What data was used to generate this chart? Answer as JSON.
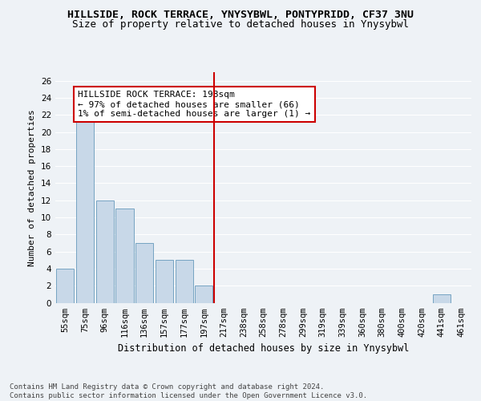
{
  "title": "HILLSIDE, ROCK TERRACE, YNYSYBWL, PONTYPRIDD, CF37 3NU",
  "subtitle": "Size of property relative to detached houses in Ynysybwl",
  "xlabel": "Distribution of detached houses by size in Ynysybwl",
  "ylabel": "Number of detached properties",
  "categories": [
    "55sqm",
    "75sqm",
    "96sqm",
    "116sqm",
    "136sqm",
    "157sqm",
    "177sqm",
    "197sqm",
    "217sqm",
    "238sqm",
    "258sqm",
    "278sqm",
    "299sqm",
    "319sqm",
    "339sqm",
    "360sqm",
    "380sqm",
    "400sqm",
    "420sqm",
    "441sqm",
    "461sqm"
  ],
  "values": [
    4,
    22,
    12,
    11,
    7,
    5,
    5,
    2,
    0,
    0,
    0,
    0,
    0,
    0,
    0,
    0,
    0,
    0,
    0,
    1,
    0
  ],
  "bar_color": "#c8d8e8",
  "bar_edge_color": "#6699bb",
  "vline_idx": 7,
  "vline_color": "#cc0000",
  "annotation_text": "HILLSIDE ROCK TERRACE: 198sqm\n← 97% of detached houses are smaller (66)\n1% of semi-detached houses are larger (1) →",
  "annotation_box_color": "#ffffff",
  "annotation_box_edge": "#cc0000",
  "ylim": [
    0,
    27
  ],
  "yticks": [
    0,
    2,
    4,
    6,
    8,
    10,
    12,
    14,
    16,
    18,
    20,
    22,
    24,
    26
  ],
  "footer": "Contains HM Land Registry data © Crown copyright and database right 2024.\nContains public sector information licensed under the Open Government Licence v3.0.",
  "title_fontsize": 9.5,
  "subtitle_fontsize": 9,
  "xlabel_fontsize": 8.5,
  "ylabel_fontsize": 8,
  "tick_fontsize": 7.5,
  "annotation_fontsize": 8,
  "footer_fontsize": 6.5,
  "bg_color": "#eef2f6",
  "grid_color": "#ffffff"
}
